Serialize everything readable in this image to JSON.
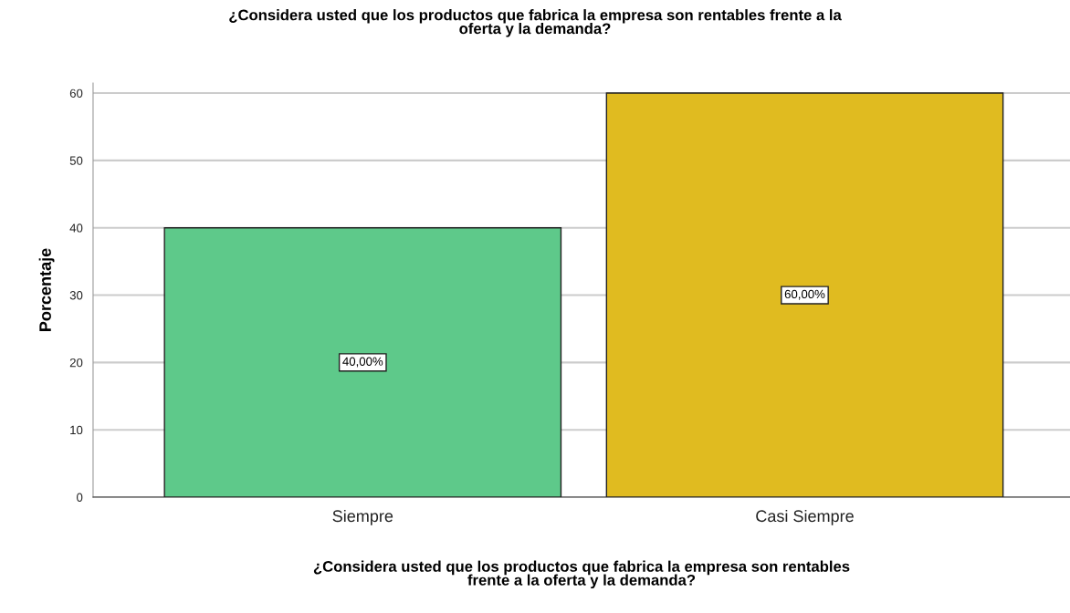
{
  "chart_data": {
    "type": "bar",
    "title": "¿Considera usted que los productos que fabrica la empresa son rentables frente a la\noferta y la demanda?",
    "xlabel": "¿Considera usted que los productos que fabrica la empresa son rentables\nfrente a la oferta y la demanda?",
    "ylabel": "Porcentaje",
    "categories": [
      "Siempre",
      "Casi Siempre"
    ],
    "values": [
      40,
      60
    ],
    "colors": [
      "#5ec98a",
      "#e0bb20"
    ],
    "value_labels": [
      "40,00%",
      "60,00%"
    ],
    "ylim": [
      0,
      61.5
    ],
    "yticks": [
      0,
      10,
      20,
      30,
      40,
      50,
      60
    ],
    "grid": "y"
  }
}
